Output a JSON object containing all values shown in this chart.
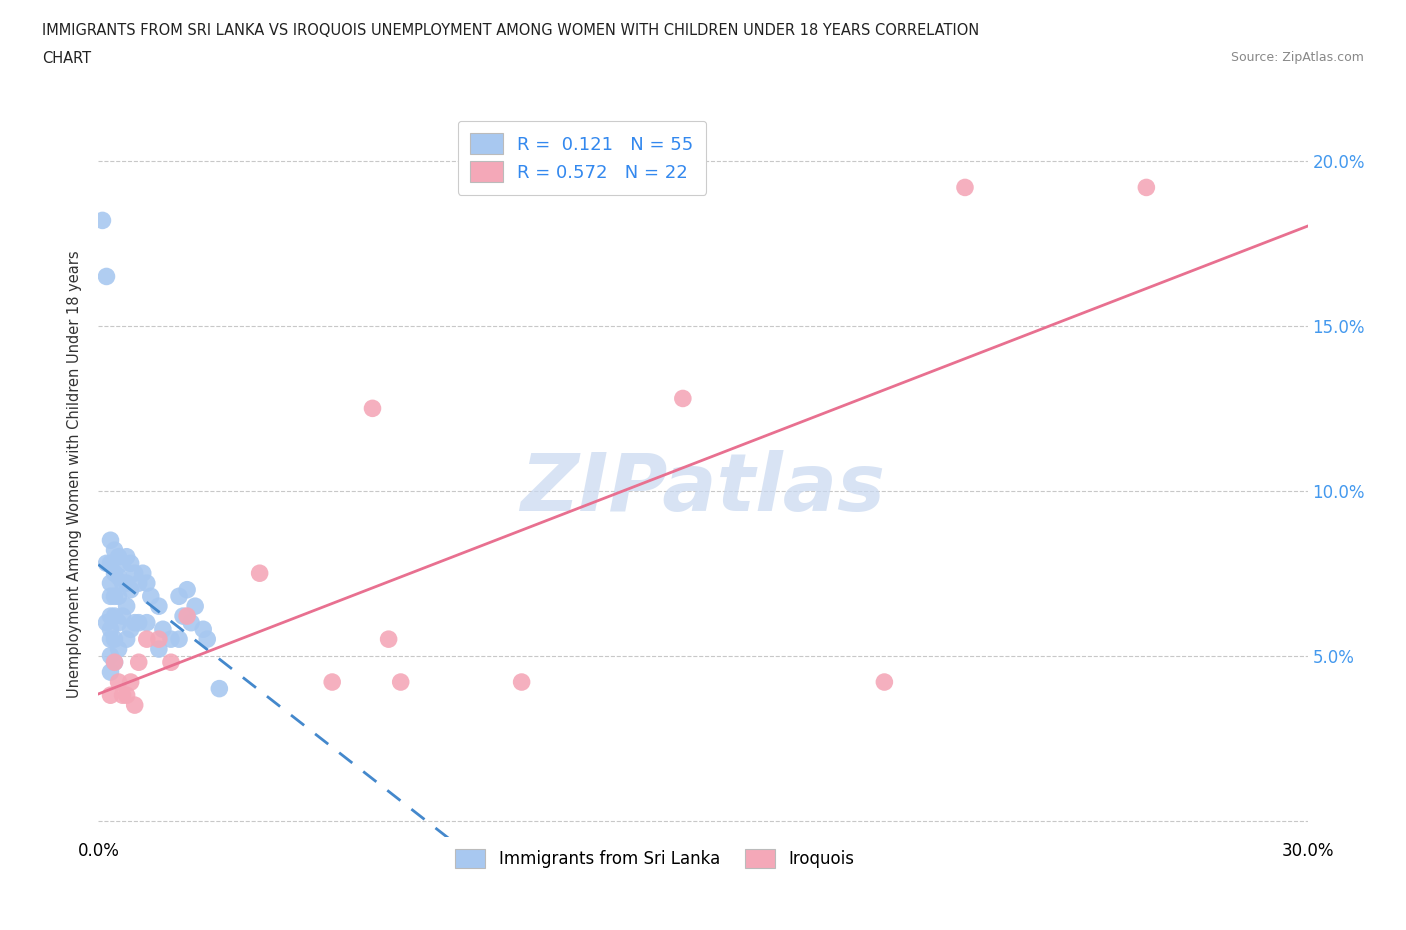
{
  "title_line1": "IMMIGRANTS FROM SRI LANKA VS IROQUOIS UNEMPLOYMENT AMONG WOMEN WITH CHILDREN UNDER 18 YEARS CORRELATION",
  "title_line2": "CHART",
  "source": "Source: ZipAtlas.com",
  "ylabel": "Unemployment Among Women with Children Under 18 years",
  "series1_name": "Immigrants from Sri Lanka",
  "series1_color": "#a8c8f0",
  "series1_line_color": "#4488cc",
  "series1_R": 0.121,
  "series1_N": 55,
  "series2_name": "Iroquois",
  "series2_color": "#f4a8b8",
  "series2_line_color": "#e87090",
  "series2_R": 0.572,
  "series2_N": 22,
  "watermark": "ZIPatlas",
  "watermark_color": "#c8d8f0",
  "background_color": "#ffffff",
  "xlim": [
    0.0,
    0.3
  ],
  "ylim": [
    -0.005,
    0.215
  ],
  "sri_lanka_x": [
    0.001,
    0.002,
    0.002,
    0.002,
    0.003,
    0.003,
    0.003,
    0.003,
    0.003,
    0.003,
    0.003,
    0.003,
    0.003,
    0.004,
    0.004,
    0.004,
    0.004,
    0.004,
    0.004,
    0.005,
    0.005,
    0.005,
    0.005,
    0.005,
    0.006,
    0.006,
    0.006,
    0.007,
    0.007,
    0.007,
    0.007,
    0.008,
    0.008,
    0.008,
    0.009,
    0.009,
    0.01,
    0.01,
    0.011,
    0.012,
    0.012,
    0.013,
    0.015,
    0.015,
    0.016,
    0.018,
    0.02,
    0.02,
    0.021,
    0.022,
    0.023,
    0.024,
    0.026,
    0.027,
    0.03
  ],
  "sri_lanka_y": [
    0.182,
    0.165,
    0.078,
    0.06,
    0.085,
    0.078,
    0.072,
    0.068,
    0.062,
    0.058,
    0.055,
    0.05,
    0.045,
    0.082,
    0.075,
    0.068,
    0.062,
    0.055,
    0.048,
    0.08,
    0.074,
    0.068,
    0.06,
    0.052,
    0.078,
    0.072,
    0.062,
    0.08,
    0.072,
    0.065,
    0.055,
    0.078,
    0.07,
    0.058,
    0.075,
    0.06,
    0.072,
    0.06,
    0.075,
    0.072,
    0.06,
    0.068,
    0.065,
    0.052,
    0.058,
    0.055,
    0.068,
    0.055,
    0.062,
    0.07,
    0.06,
    0.065,
    0.058,
    0.055,
    0.04
  ],
  "iroquois_x": [
    0.003,
    0.004,
    0.005,
    0.006,
    0.007,
    0.008,
    0.009,
    0.01,
    0.012,
    0.015,
    0.018,
    0.022,
    0.04,
    0.058,
    0.068,
    0.072,
    0.075,
    0.105,
    0.145,
    0.195,
    0.215,
    0.26
  ],
  "iroquois_y": [
    0.038,
    0.048,
    0.042,
    0.038,
    0.038,
    0.042,
    0.035,
    0.048,
    0.055,
    0.055,
    0.048,
    0.062,
    0.075,
    0.042,
    0.125,
    0.055,
    0.042,
    0.042,
    0.128,
    0.042,
    0.192,
    0.192
  ]
}
